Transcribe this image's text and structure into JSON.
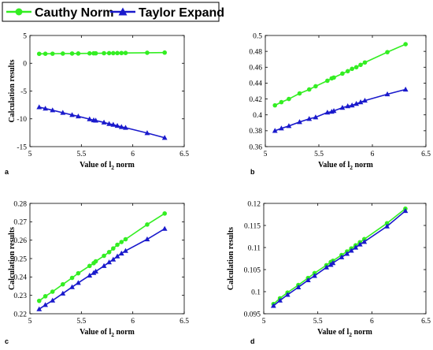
{
  "legend": {
    "entries": [
      {
        "label": "Cauthy Norm",
        "color": "#33ee22",
        "marker": "circle"
      },
      {
        "label": "Taylor Expand",
        "color": "#1a1acc",
        "marker": "triangle"
      }
    ]
  },
  "chart_data": [
    {
      "type": "line",
      "panel": "a",
      "xlabel": "Value of l",
      "xlabel_sub": "2",
      "xlabel_tail": " norm",
      "ylabel": "Calculation results",
      "xlim": [
        5,
        6.5
      ],
      "ylim": [
        -15,
        5
      ],
      "xticks": [
        "5",
        "5.5",
        "6",
        "6.5"
      ],
      "yticks": [
        "-15",
        "-10",
        "-5",
        "0",
        "5"
      ],
      "grid": false,
      "x": [
        5.09,
        5.15,
        5.22,
        5.32,
        5.41,
        5.47,
        5.58,
        5.62,
        5.64,
        5.72,
        5.77,
        5.81,
        5.85,
        5.89,
        5.93,
        6.14,
        6.31
      ],
      "series": [
        {
          "name": "Cauthy Norm",
          "values": [
            1.7,
            1.71,
            1.72,
            1.74,
            1.75,
            1.76,
            1.78,
            1.79,
            1.79,
            1.81,
            1.82,
            1.82,
            1.83,
            1.84,
            1.85,
            1.89,
            1.92
          ]
        },
        {
          "name": "Taylor Expand",
          "values": [
            -7.9,
            -8.15,
            -8.45,
            -8.9,
            -9.3,
            -9.55,
            -10.05,
            -10.25,
            -10.3,
            -10.65,
            -10.9,
            -11.05,
            -11.25,
            -11.45,
            -11.6,
            -12.55,
            -13.4
          ]
        }
      ]
    },
    {
      "type": "line",
      "panel": "b",
      "xlabel": "Value of l",
      "xlabel_sub": "2",
      "xlabel_tail": " norm",
      "ylabel": "",
      "xlim": [
        5,
        6.5
      ],
      "ylim": [
        0.36,
        0.5
      ],
      "xticks": [
        "5",
        "5.5",
        "6",
        "6.5"
      ],
      "yticks": [
        "0.36",
        "0.38",
        "0.4",
        "0.42",
        "0.44",
        "0.46",
        "0.48",
        "0.5"
      ],
      "grid": false,
      "x": [
        5.09,
        5.15,
        5.22,
        5.32,
        5.41,
        5.47,
        5.58,
        5.62,
        5.64,
        5.72,
        5.77,
        5.81,
        5.85,
        5.89,
        5.93,
        6.14,
        6.31
      ],
      "series": [
        {
          "name": "Cauthy Norm",
          "values": [
            0.412,
            0.416,
            0.42,
            0.427,
            0.432,
            0.436,
            0.443,
            0.446,
            0.447,
            0.452,
            0.455,
            0.458,
            0.46,
            0.463,
            0.466,
            0.479,
            0.489
          ]
        },
        {
          "name": "Taylor Expand",
          "values": [
            0.38,
            0.383,
            0.386,
            0.391,
            0.395,
            0.397,
            0.403,
            0.404,
            0.405,
            0.409,
            0.411,
            0.412,
            0.414,
            0.416,
            0.418,
            0.426,
            0.432
          ]
        }
      ]
    },
    {
      "type": "line",
      "panel": "c",
      "xlabel": "Value of l",
      "xlabel_sub": "2",
      "xlabel_tail": " norm",
      "ylabel": "Calculation results",
      "xlim": [
        5,
        6.5
      ],
      "ylim": [
        0.22,
        0.28
      ],
      "xticks": [
        "5",
        "5.5",
        "6",
        "6.5"
      ],
      "yticks": [
        "0.22",
        "0.23",
        "0.24",
        "0.25",
        "0.26",
        "0.27",
        "0.28"
      ],
      "grid": false,
      "x": [
        5.09,
        5.15,
        5.22,
        5.32,
        5.41,
        5.47,
        5.58,
        5.62,
        5.64,
        5.72,
        5.77,
        5.81,
        5.85,
        5.89,
        5.93,
        6.14,
        6.31
      ],
      "series": [
        {
          "name": "Cauthy Norm",
          "values": [
            0.227,
            0.2295,
            0.232,
            0.236,
            0.2395,
            0.242,
            0.246,
            0.2475,
            0.2485,
            0.2515,
            0.2535,
            0.2555,
            0.2575,
            0.259,
            0.2605,
            0.2685,
            0.2745
          ]
        },
        {
          "name": "Taylor Expand",
          "values": [
            0.2225,
            0.2248,
            0.2272,
            0.231,
            0.2345,
            0.2368,
            0.2408,
            0.2422,
            0.243,
            0.246,
            0.248,
            0.2495,
            0.2512,
            0.2528,
            0.2542,
            0.2605,
            0.2662
          ]
        }
      ]
    },
    {
      "type": "line",
      "panel": "d",
      "xlabel": "Value of l",
      "xlabel_sub": "2",
      "xlabel_tail": " norm",
      "ylabel": "Calculation results",
      "xlim": [
        5,
        6.5
      ],
      "ylim": [
        0.095,
        0.12
      ],
      "xticks": [
        "5",
        "5.5",
        "6",
        "6.5"
      ],
      "yticks": [
        "0.095",
        "0.1",
        "0.105",
        "0.11",
        "0.115",
        "0.12"
      ],
      "grid": false,
      "x": [
        5.09,
        5.15,
        5.22,
        5.32,
        5.41,
        5.47,
        5.58,
        5.62,
        5.64,
        5.72,
        5.77,
        5.81,
        5.85,
        5.89,
        5.93,
        6.14,
        6.31
      ],
      "series": [
        {
          "name": "Cauthy Norm",
          "values": [
            0.0972,
            0.0985,
            0.0998,
            0.1015,
            0.1031,
            0.1042,
            0.106,
            0.1067,
            0.107,
            0.1083,
            0.1091,
            0.1098,
            0.1105,
            0.1112,
            0.1119,
            0.1155,
            0.1188
          ]
        },
        {
          "name": "Taylor Expand",
          "values": [
            0.0968,
            0.098,
            0.0993,
            0.101,
            0.1026,
            0.1036,
            0.1055,
            0.1061,
            0.1065,
            0.1078,
            0.1086,
            0.1093,
            0.11,
            0.1107,
            0.1113,
            0.1148,
            0.1183
          ]
        }
      ]
    }
  ]
}
